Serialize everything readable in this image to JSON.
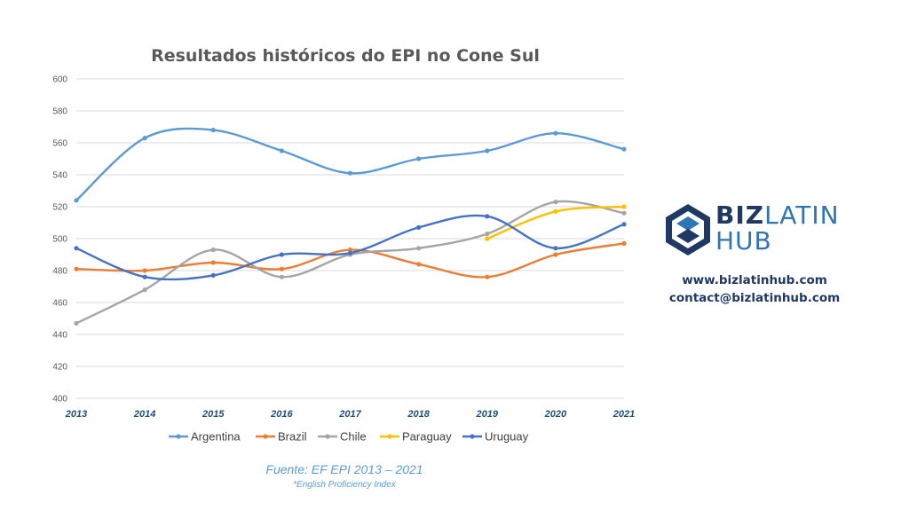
{
  "chart_data": {
    "type": "line",
    "title": "Resultados históricos do EPI no Cone Sul",
    "x": [
      "2013",
      "2014",
      "2015",
      "2016",
      "2017",
      "2018",
      "2019",
      "2020",
      "2021"
    ],
    "ylim": [
      400,
      600
    ],
    "yticks": [
      "400",
      "420",
      "440",
      "460",
      "480",
      "500",
      "520",
      "540",
      "560",
      "580",
      "600"
    ],
    "grid": true,
    "legend_position": "bottom",
    "series": [
      {
        "name": "Argentina",
        "color": "#5b9bd5",
        "values": [
          524,
          563,
          568,
          555,
          541,
          550,
          555,
          566,
          556
        ]
      },
      {
        "name": "Brazil",
        "color": "#ed7d31",
        "values": [
          481,
          480,
          485,
          481,
          493,
          484,
          476,
          490,
          497
        ]
      },
      {
        "name": "Chile",
        "color": "#a5a5a5",
        "values": [
          447,
          468,
          493,
          476,
          490,
          494,
          503,
          523,
          516
        ]
      },
      {
        "name": "Paraguay",
        "color": "#ffc000",
        "values": [
          null,
          null,
          null,
          null,
          null,
          null,
          500,
          517,
          520
        ]
      },
      {
        "name": "Uruguay",
        "color": "#4472c4",
        "values": [
          494,
          476,
          477,
          490,
          491,
          507,
          514,
          494,
          509
        ]
      }
    ]
  },
  "source": {
    "text": "Fuente: EF EPI 2013 – 2021",
    "note": "*English Proficiency Index"
  },
  "logo": {
    "part1": "BIZ",
    "part2": "LATIN",
    "part3": "HUB",
    "colors": {
      "dark": "#1f3864",
      "light": "#2e75b6"
    }
  },
  "contact": {
    "website": "www.bizlatinhub.com",
    "email": "contact@bizlatinhub.com"
  }
}
